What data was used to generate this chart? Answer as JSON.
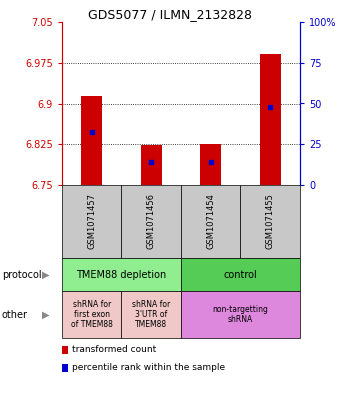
{
  "title": "GDS5077 / ILMN_2132828",
  "samples": [
    "GSM1071457",
    "GSM1071456",
    "GSM1071454",
    "GSM1071455"
  ],
  "ylim_left": [
    6.75,
    7.05
  ],
  "ylim_right": [
    0,
    100
  ],
  "yticks_left": [
    6.75,
    6.825,
    6.9,
    6.975,
    7.05
  ],
  "yticks_right": [
    0,
    25,
    50,
    75,
    100
  ],
  "ytick_labels_left": [
    "6.75",
    "6.825",
    "6.9",
    "6.975",
    "7.05"
  ],
  "ytick_labels_right": [
    "0",
    "25",
    "50",
    "75",
    "100%"
  ],
  "bar_tops": [
    6.914,
    6.824,
    6.826,
    6.992
  ],
  "bar_bottom": 6.75,
  "blue_marker_values": [
    6.848,
    6.793,
    6.793,
    6.893
  ],
  "protocol_groups": [
    {
      "label": "TMEM88 depletion",
      "cols": [
        0,
        1
      ],
      "color": "#90EE90"
    },
    {
      "label": "control",
      "cols": [
        2,
        3
      ],
      "color": "#55CC55"
    }
  ],
  "other_groups": [
    {
      "label": "shRNA for\nfirst exon\nof TMEM88",
      "cols": [
        0
      ],
      "color": "#F0C8C8"
    },
    {
      "label": "shRNA for\n3'UTR of\nTMEM88",
      "cols": [
        1
      ],
      "color": "#F0C8C8"
    },
    {
      "label": "non-targetting\nshRNA",
      "cols": [
        2,
        3
      ],
      "color": "#DD88DD"
    }
  ],
  "bar_color": "#CC0000",
  "blue_color": "#0000CC",
  "sample_box_color": "#C8C8C8",
  "left_axis_color": "#CC0000",
  "right_axis_color": "#0000CC",
  "grid_vals": [
    6.825,
    6.9,
    6.975
  ],
  "legend_items": [
    {
      "color": "#CC0000",
      "label": "transformed count"
    },
    {
      "color": "#0000CC",
      "label": "percentile rank within the sample"
    }
  ]
}
